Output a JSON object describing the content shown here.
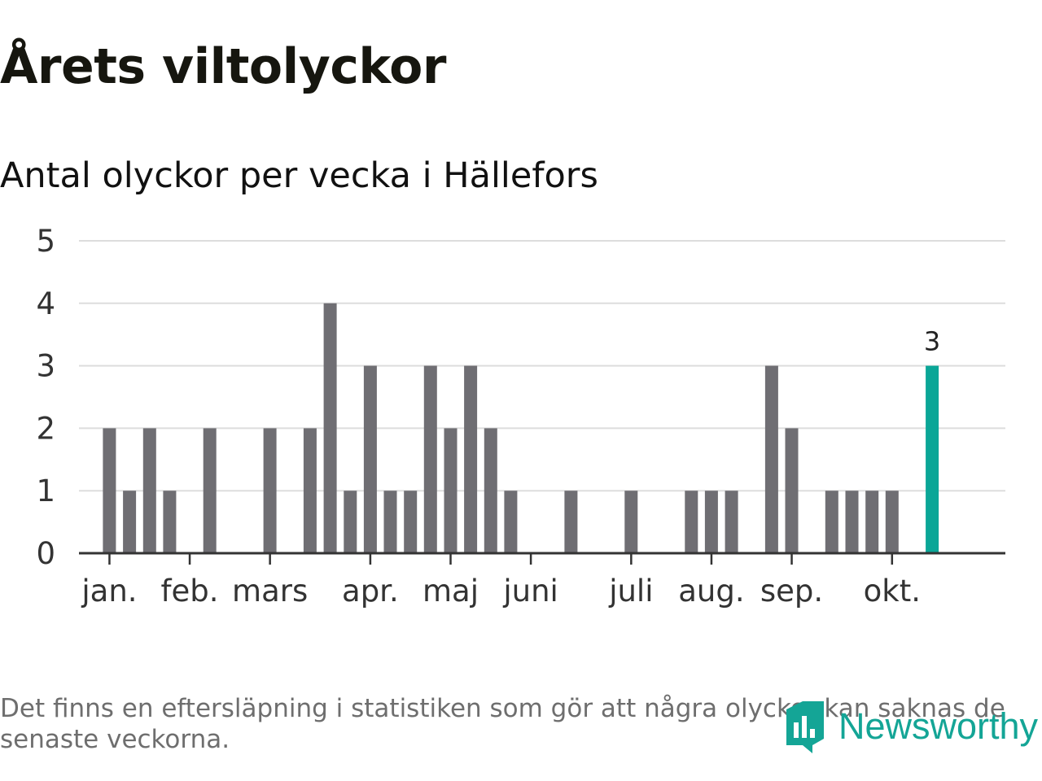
{
  "header": {
    "title": "Årets viltolyckor",
    "subtitle": "Antal olyckor per vecka i Hällefors"
  },
  "chart_data": {
    "type": "bar",
    "title": "Antal olyckor per vecka i Hällefors",
    "xlabel": "",
    "ylabel": "",
    "ylim": [
      0,
      5
    ],
    "yticks": [
      "0",
      "1",
      "2",
      "3",
      "4",
      "5"
    ],
    "grid": true,
    "unit": "week",
    "week_range": [
      1,
      44
    ],
    "values": [
      0,
      0,
      2,
      1,
      2,
      1,
      0,
      2,
      0,
      0,
      2,
      0,
      2,
      4,
      1,
      3,
      1,
      1,
      3,
      2,
      3,
      2,
      1,
      0,
      0,
      1,
      0,
      0,
      1,
      0,
      0,
      1,
      1,
      1,
      0,
      3,
      2,
      0,
      1,
      1,
      1,
      1,
      0,
      3
    ],
    "month_ticks": [
      {
        "label": "jan.",
        "week": 3
      },
      {
        "label": "feb.",
        "week": 7
      },
      {
        "label": "mars",
        "week": 11
      },
      {
        "label": "apr.",
        "week": 16
      },
      {
        "label": "maj",
        "week": 20
      },
      {
        "label": "juni",
        "week": 24
      },
      {
        "label": "juli",
        "week": 29
      },
      {
        "label": "aug.",
        "week": 33
      },
      {
        "label": "sep.",
        "week": 37
      },
      {
        "label": "okt.",
        "week": 42
      }
    ],
    "highlight": {
      "week": 44,
      "value": 3,
      "label": "3"
    },
    "colors": {
      "bar": "#6f6e73",
      "highlight": "#0aa697",
      "grid": "#dddddd",
      "axis": "#333333",
      "tick_text": "#333333"
    }
  },
  "footer": {
    "note": "Det finns en eftersläpning i statistiken som gör att några olyckor kan saknas de senaste veckorna.",
    "brand": "Newsworthy",
    "brand_icon": "newsworthy-logo-icon",
    "brand_color": "#14a596"
  }
}
